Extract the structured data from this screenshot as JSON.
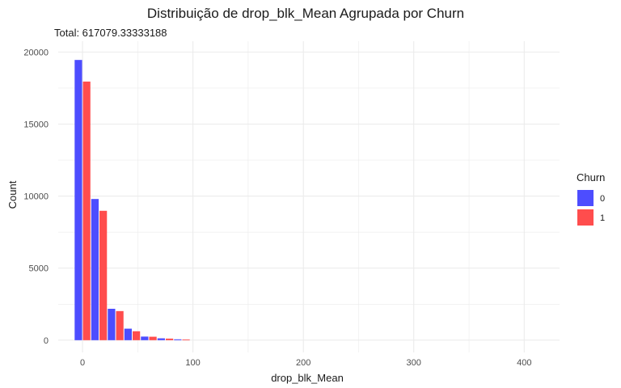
{
  "chart_data": {
    "type": "bar",
    "title": "Distribuição de drop_blk_Mean Agrupada por Churn",
    "subtitle": "Total: 617079.33333188",
    "xlabel": "drop_blk_Mean",
    "ylabel": "Count",
    "xlim": [
      -22,
      432
    ],
    "ylim": [
      -850,
      20750
    ],
    "x_ticks": [
      0,
      100,
      200,
      300,
      400
    ],
    "y_ticks": [
      0,
      5000,
      10000,
      15000,
      20000
    ],
    "grid": true,
    "bin_width": 15,
    "x": [
      0,
      15,
      30,
      45,
      60,
      75,
      90
    ],
    "series": [
      {
        "name": "0",
        "values": [
          19450,
          9800,
          2180,
          800,
          250,
          130,
          60
        ]
      },
      {
        "name": "1",
        "values": [
          17950,
          8980,
          2020,
          620,
          240,
          110,
          50
        ]
      }
    ],
    "legend": {
      "title": "Churn",
      "position": "right",
      "entries": [
        "0",
        "1"
      ]
    },
    "colors": {
      "0": "#4d4dff",
      "1": "#ff4d4d",
      "grid": "#ebebeb"
    }
  }
}
